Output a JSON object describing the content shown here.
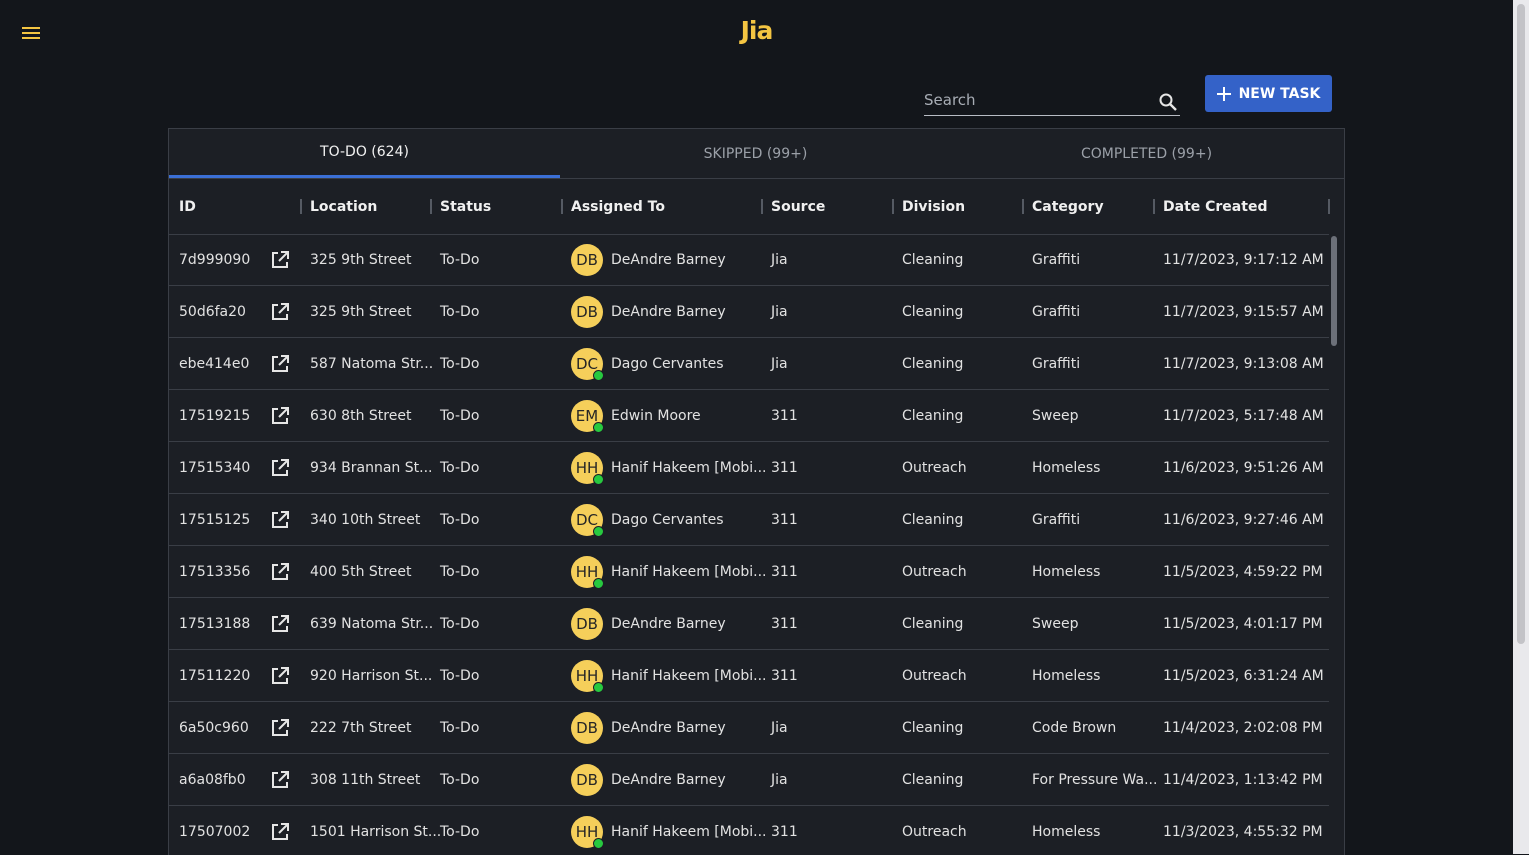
{
  "header": {
    "title": "Jia"
  },
  "search": {
    "placeholder": "Search"
  },
  "new_task_button": {
    "label": "NEW TASK"
  },
  "tabs": [
    "TO-DO (624)",
    "SKIPPED (99+)",
    "COMPLETED (99+)"
  ],
  "table": {
    "columns": [
      "ID",
      "Location",
      "Status",
      "Assigned To",
      "Source",
      "Division",
      "Category",
      "Date Created"
    ],
    "rows": [
      {
        "id": "7d999090",
        "location": "325 9th Street",
        "status": "To-Do",
        "initials": "DB",
        "online": false,
        "assigned_to": "DeAndre Barney",
        "source": "Jia",
        "division": "Cleaning",
        "category": "Graffiti",
        "date_created": "11/7/2023, 9:17:12 AM"
      },
      {
        "id": "50d6fa20",
        "location": "325 9th Street",
        "status": "To-Do",
        "initials": "DB",
        "online": false,
        "assigned_to": "DeAndre Barney",
        "source": "Jia",
        "division": "Cleaning",
        "category": "Graffiti",
        "date_created": "11/7/2023, 9:15:57 AM"
      },
      {
        "id": "ebe414e0",
        "location": "587 Natoma Str...",
        "status": "To-Do",
        "initials": "DC",
        "online": true,
        "assigned_to": "Dago Cervantes",
        "source": "Jia",
        "division": "Cleaning",
        "category": "Graffiti",
        "date_created": "11/7/2023, 9:13:08 AM"
      },
      {
        "id": "17519215",
        "location": "630 8th Street",
        "status": "To-Do",
        "initials": "EM",
        "online": true,
        "assigned_to": "Edwin Moore",
        "source": "311",
        "division": "Cleaning",
        "category": "Sweep",
        "date_created": "11/7/2023, 5:17:48 AM"
      },
      {
        "id": "17515340",
        "location": "934 Brannan St...",
        "status": "To-Do",
        "initials": "HH",
        "online": true,
        "assigned_to": "Hanif Hakeem [Mobi...",
        "source": "311",
        "division": "Outreach",
        "category": "Homeless",
        "date_created": "11/6/2023, 9:51:26 AM"
      },
      {
        "id": "17515125",
        "location": "340 10th Street",
        "status": "To-Do",
        "initials": "DC",
        "online": true,
        "assigned_to": "Dago Cervantes",
        "source": "311",
        "division": "Cleaning",
        "category": "Graffiti",
        "date_created": "11/6/2023, 9:27:46 AM"
      },
      {
        "id": "17513356",
        "location": "400 5th Street",
        "status": "To-Do",
        "initials": "HH",
        "online": true,
        "assigned_to": "Hanif Hakeem [Mobi...",
        "source": "311",
        "division": "Outreach",
        "category": "Homeless",
        "date_created": "11/5/2023, 4:59:22 PM"
      },
      {
        "id": "17513188",
        "location": "639 Natoma Str...",
        "status": "To-Do",
        "initials": "DB",
        "online": false,
        "assigned_to": "DeAndre Barney",
        "source": "311",
        "division": "Cleaning",
        "category": "Sweep",
        "date_created": "11/5/2023, 4:01:17 PM"
      },
      {
        "id": "17511220",
        "location": "920 Harrison St...",
        "status": "To-Do",
        "initials": "HH",
        "online": true,
        "assigned_to": "Hanif Hakeem [Mobi...",
        "source": "311",
        "division": "Outreach",
        "category": "Homeless",
        "date_created": "11/5/2023, 6:31:24 AM"
      },
      {
        "id": "6a50c960",
        "location": "222 7th Street",
        "status": "To-Do",
        "initials": "DB",
        "online": false,
        "assigned_to": "DeAndre Barney",
        "source": "Jia",
        "division": "Cleaning",
        "category": "Code Brown",
        "date_created": "11/4/2023, 2:02:08 PM"
      },
      {
        "id": "a6a08fb0",
        "location": "308 11th Street",
        "status": "To-Do",
        "initials": "DB",
        "online": false,
        "assigned_to": "DeAndre Barney",
        "source": "Jia",
        "division": "Cleaning",
        "category": "For Pressure Wa...",
        "date_created": "11/4/2023, 1:13:42 PM"
      },
      {
        "id": "17507002",
        "location": "1501 Harrison St...",
        "status": "To-Do",
        "initials": "HH",
        "online": true,
        "assigned_to": "Hanif Hakeem [Mobi...",
        "source": "311",
        "division": "Outreach",
        "category": "Homeless",
        "date_created": "11/3/2023, 4:55:32 PM"
      }
    ]
  }
}
